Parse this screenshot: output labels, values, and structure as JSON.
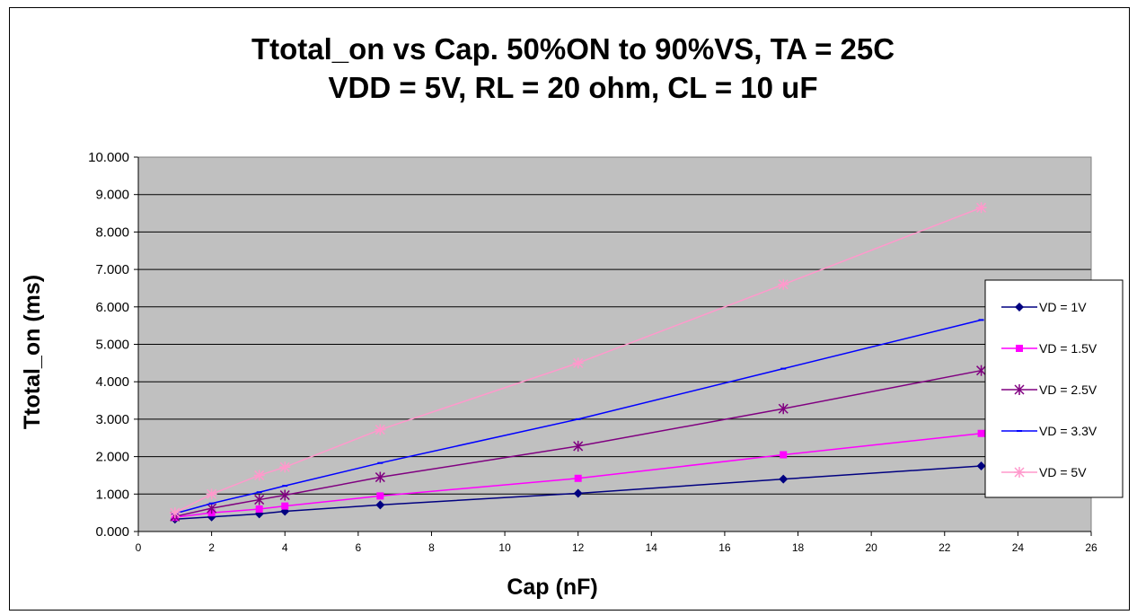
{
  "chart_data": {
    "type": "line",
    "title": "Ttotal_on vs Cap. 50%ON to 90%VS, TA = 25C",
    "subtitle": "VDD = 5V, RL = 20 ohm, CL = 10 uF",
    "xlabel": "Cap (nF)",
    "ylabel": "Ttotal_on (ms)",
    "xlim": [
      0,
      26
    ],
    "ylim": [
      0,
      10
    ],
    "x_ticks": [
      "0",
      "2",
      "4",
      "6",
      "8",
      "10",
      "12",
      "14",
      "16",
      "18",
      "20",
      "22",
      "24",
      "26"
    ],
    "y_ticks": [
      "0.000",
      "1.000",
      "2.000",
      "3.000",
      "4.000",
      "5.000",
      "6.000",
      "7.000",
      "8.000",
      "9.000",
      "10.000"
    ],
    "grid": true,
    "legend_position": "right",
    "plot_background": "#c0c0c0",
    "series": [
      {
        "name": "VD = 1V",
        "color": "#000080",
        "marker": "diamond",
        "x": [
          1,
          2,
          3.3,
          4,
          6.6,
          12,
          17.6,
          23
        ],
        "y": [
          0.33,
          0.39,
          0.47,
          0.54,
          0.71,
          1.02,
          1.4,
          1.75
        ]
      },
      {
        "name": "VD = 1.5V",
        "color": "#ff00ff",
        "marker": "square",
        "x": [
          1,
          2,
          3.3,
          4,
          6.6,
          12,
          17.6,
          23
        ],
        "y": [
          0.38,
          0.5,
          0.6,
          0.68,
          0.95,
          1.42,
          2.05,
          2.62
        ]
      },
      {
        "name": "VD = 2.5V",
        "color": "#800080",
        "marker": "asterisk",
        "x": [
          1,
          2,
          3.3,
          4,
          6.6,
          12,
          17.6,
          23
        ],
        "y": [
          0.4,
          0.62,
          0.85,
          0.97,
          1.45,
          2.28,
          3.28,
          4.3
        ]
      },
      {
        "name": "VD = 3.3V",
        "color": "#0000ff",
        "marker": "dash",
        "x": [
          1,
          2,
          3.3,
          4,
          6.6,
          12,
          17.6,
          23
        ],
        "y": [
          0.48,
          0.75,
          1.05,
          1.22,
          1.83,
          3.0,
          4.35,
          5.65
        ]
      },
      {
        "name": "VD = 5V",
        "color": "#ff99cc",
        "marker": "star",
        "x": [
          1,
          2,
          3.3,
          4,
          6.6,
          12,
          17.6,
          23
        ],
        "y": [
          0.5,
          1.0,
          1.5,
          1.72,
          2.72,
          4.5,
          6.6,
          8.65
        ]
      }
    ]
  }
}
